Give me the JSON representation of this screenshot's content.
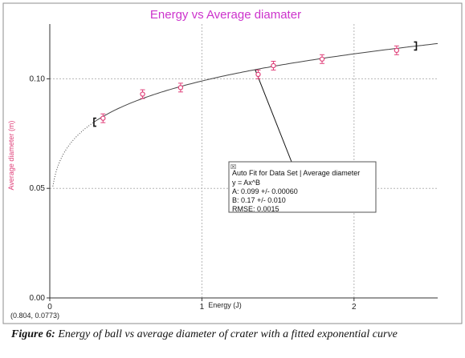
{
  "chart_data": {
    "type": "scatter",
    "title": "Energy vs Average diamater",
    "xlabel": "Energy (J)",
    "ylabel": "Average diameter (m)",
    "xlim": [
      0,
      2.55
    ],
    "ylim": [
      0,
      0.125
    ],
    "x_ticks": [
      0,
      1,
      2
    ],
    "x_tick_labels": [
      "0",
      "1",
      "2"
    ],
    "y_ticks": [
      0.0,
      0.05,
      0.1
    ],
    "y_tick_labels": [
      "0.00",
      "0.05",
      "0.10"
    ],
    "grid": true,
    "marker_color": "#e0407a",
    "fit_color": "#444444",
    "title_color": "#cc33cc",
    "series": [
      {
        "name": "Average diameter",
        "x": [
          0.35,
          0.61,
          0.86,
          1.37,
          1.47,
          1.79,
          2.28
        ],
        "y": [
          0.082,
          0.093,
          0.096,
          0.102,
          0.106,
          0.109,
          0.113
        ],
        "yerr": 0.002
      }
    ],
    "fit": {
      "A": 0.099,
      "B": 0.17,
      "range": [
        0.29,
        2.41
      ],
      "header": "Auto Fit for  Data Set | Average diameter",
      "equation": "y = Ax^B",
      "a_line": "A: 0.099 +/- 0.00060",
      "b_line": "B: 0.17 +/- 0.010",
      "rmse_line": "RMSE: 0.0015",
      "close_glyph": "☒"
    },
    "coordinate_readout": "(0.804, 0.0773)",
    "caption_label": "Figure 6:",
    "caption_text": " Energy of ball vs average diameter of crater with a fitted exponential curve"
  }
}
